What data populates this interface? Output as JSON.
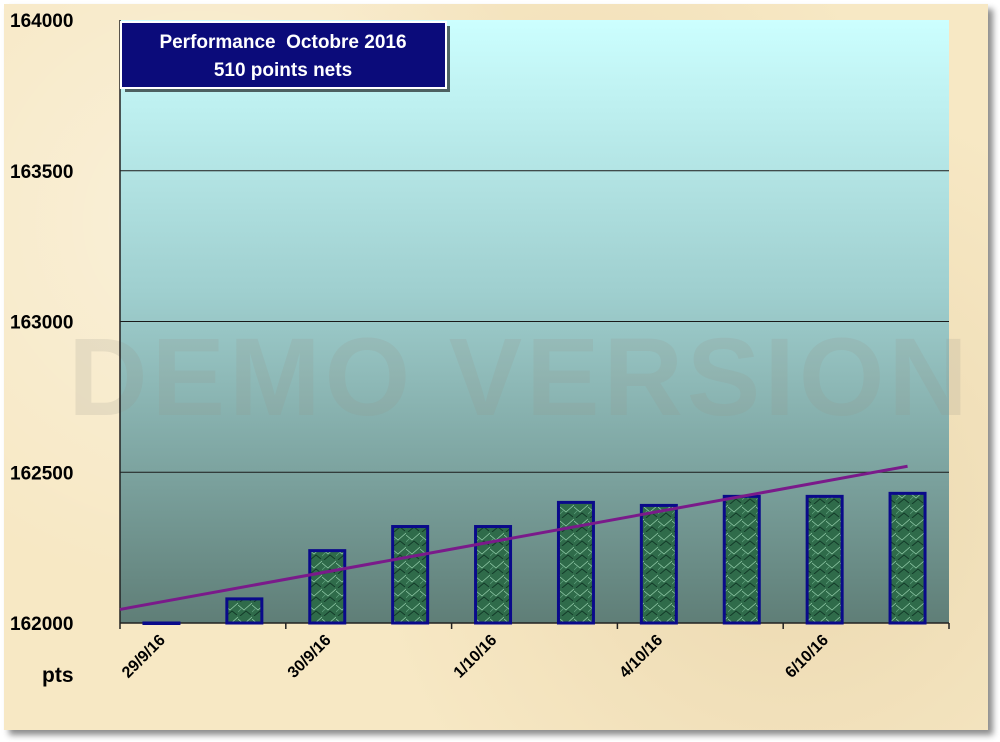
{
  "chart_data": {
    "type": "bar",
    "title": "Performance  Octobre 2016",
    "subtitle": "510 points nets",
    "ylabel": "pts",
    "ylim": [
      162000,
      164000
    ],
    "yticks": [
      "164000",
      "163500",
      "163000",
      "162500",
      "162000"
    ],
    "xtick_labels": [
      "29/9/16",
      "30/9/16",
      "1/10/16",
      "4/10/16",
      "6/10/16"
    ],
    "values": [
      162000,
      162080,
      162240,
      162320,
      162320,
      162400,
      162390,
      162420,
      162420,
      162430
    ],
    "trendline": {
      "start": 162045,
      "end": 162520
    },
    "watermark": "DEMO VERSION",
    "grid": true,
    "legend": "none",
    "colors": {
      "bar_fill": "#2f6b4a",
      "bar_border": "#0a0a8a",
      "trendline": "#7a1a8a",
      "title_box": "#0b0b7a",
      "plot_top": "#ccffff",
      "plot_bottom": "#5f7e77"
    }
  }
}
